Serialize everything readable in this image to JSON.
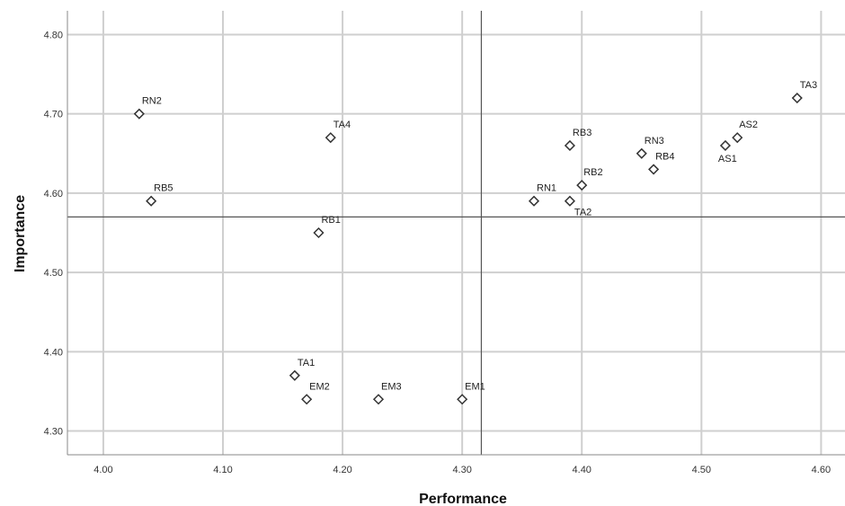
{
  "chart_data": {
    "type": "scatter",
    "xlabel": "Performance",
    "ylabel": "Importance",
    "xlim": [
      3.97,
      4.62
    ],
    "ylim": [
      4.27,
      4.83
    ],
    "x_ticks": [
      "4.00",
      "4.10",
      "4.20",
      "4.30",
      "4.40",
      "4.50",
      "4.60"
    ],
    "y_ticks": [
      "4.30",
      "4.40",
      "4.50",
      "4.60",
      "4.70",
      "4.80"
    ],
    "x_tick_values": [
      4.0,
      4.1,
      4.2,
      4.3,
      4.4,
      4.5,
      4.6
    ],
    "y_tick_values": [
      4.3,
      4.4,
      4.5,
      4.6,
      4.7,
      4.8
    ],
    "grid": true,
    "marker": "hollow diamond",
    "reference_lines": {
      "x": 4.316,
      "y": 4.57
    },
    "points": [
      {
        "label": "RN2",
        "x": 4.03,
        "y": 4.7
      },
      {
        "label": "RB5",
        "x": 4.04,
        "y": 4.59
      },
      {
        "label": "TA4",
        "x": 4.19,
        "y": 4.67
      },
      {
        "label": "RB1",
        "x": 4.18,
        "y": 4.55
      },
      {
        "label": "TA1",
        "x": 4.16,
        "y": 4.37
      },
      {
        "label": "EM2",
        "x": 4.17,
        "y": 4.34
      },
      {
        "label": "EM3",
        "x": 4.23,
        "y": 4.34
      },
      {
        "label": "EM1",
        "x": 4.3,
        "y": 4.34
      },
      {
        "label": "RN1",
        "x": 4.36,
        "y": 4.59
      },
      {
        "label": "TA2",
        "x": 4.39,
        "y": 4.59
      },
      {
        "label": "RB3",
        "x": 4.39,
        "y": 4.66
      },
      {
        "label": "RB2",
        "x": 4.4,
        "y": 4.61
      },
      {
        "label": "RN3",
        "x": 4.45,
        "y": 4.65
      },
      {
        "label": "RB4",
        "x": 4.46,
        "y": 4.63
      },
      {
        "label": "AS1",
        "x": 4.52,
        "y": 4.66
      },
      {
        "label": "AS2",
        "x": 4.53,
        "y": 4.67
      },
      {
        "label": "TA3",
        "x": 4.58,
        "y": 4.72
      }
    ]
  }
}
